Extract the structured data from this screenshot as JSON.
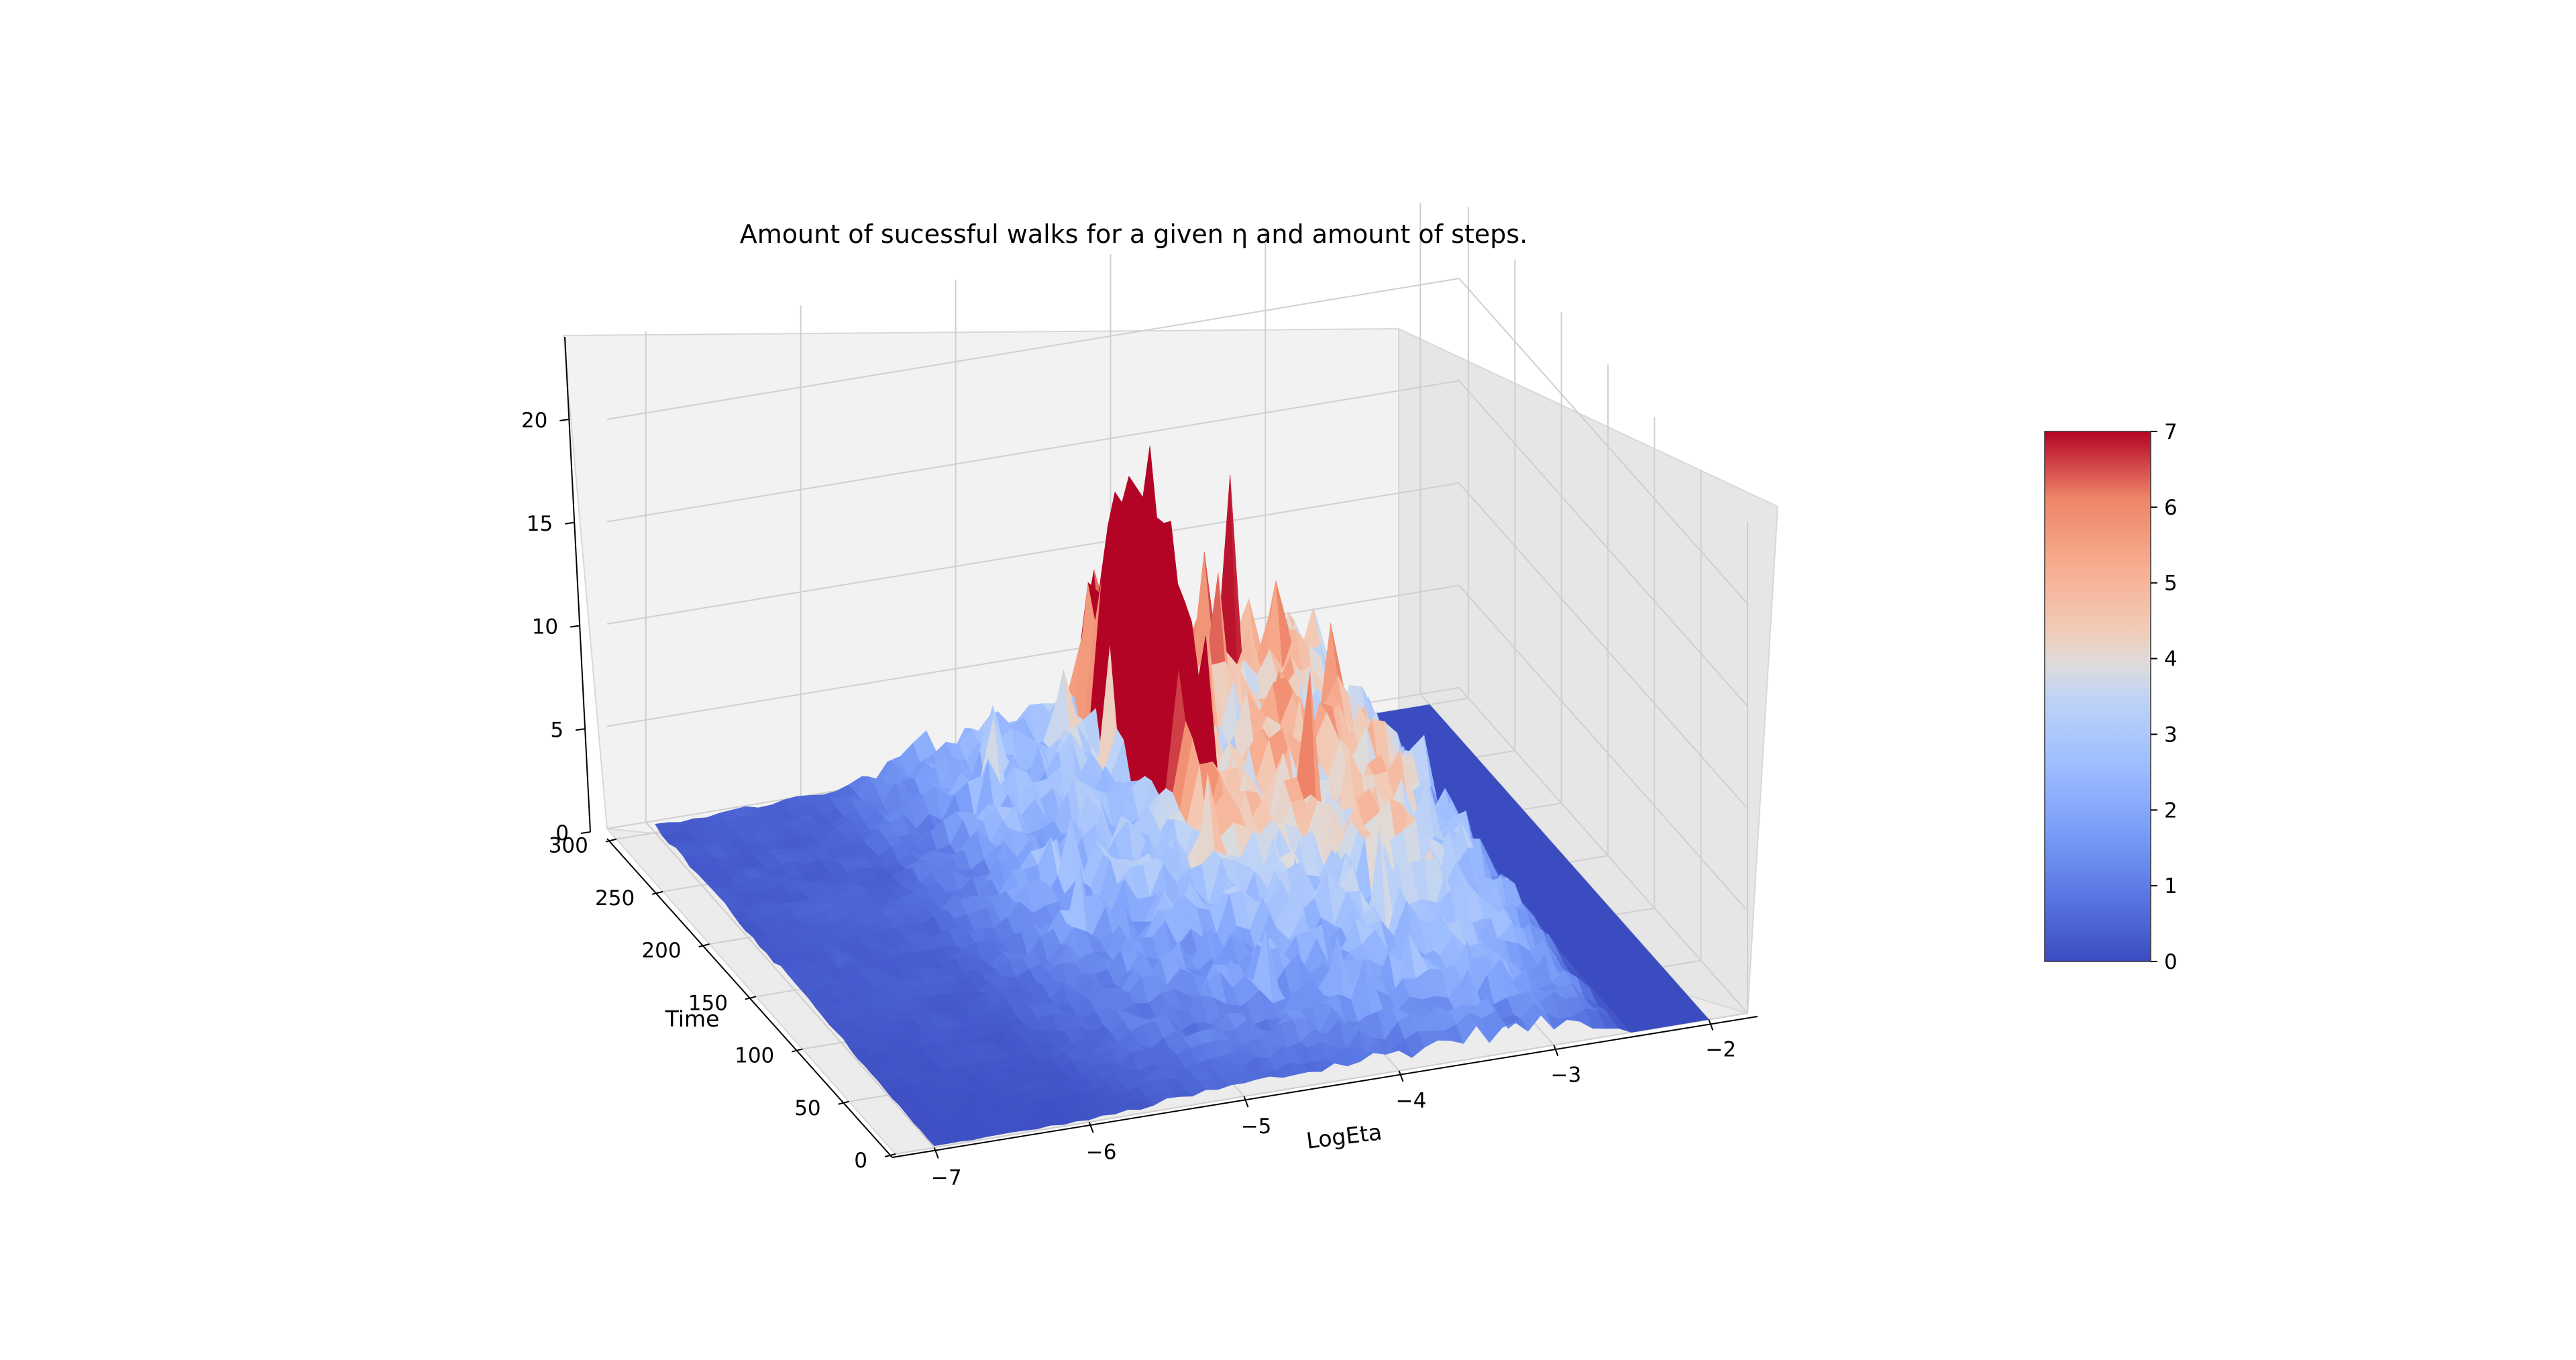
{
  "chart_data": {
    "type": "surface3d",
    "title": "Amount of sucessful walks for a given η and amount of steps.",
    "xlabel": "LogEta",
    "ylabel": "Time",
    "zlabel": "",
    "x_ticks": [
      "−7",
      "−6",
      "−5",
      "−4",
      "−3",
      "−2"
    ],
    "y_ticks": [
      "0",
      "50",
      "100",
      "150",
      "200",
      "250",
      "300"
    ],
    "z_ticks": [
      "0",
      "5",
      "10",
      "15",
      "20"
    ],
    "colorbar_ticks": [
      "0",
      "1",
      "2",
      "3",
      "4",
      "5",
      "6",
      "7"
    ],
    "xlim": [
      -7.25,
      -1.75
    ],
    "ylim": [
      0,
      310
    ],
    "zlim": [
      0,
      24
    ],
    "color_range": [
      0,
      7
    ],
    "colormap": "coolwarm",
    "grid": true,
    "surface_profile": {
      "description_of_mean_height_vs_logeta": "near zero for LogEta below about -5.8, rising to about 3 around -4.5 and up to about 5 near -3.5, then dropping to zero beyond about -2.5",
      "logeta": [
        -7.0,
        -6.5,
        -6.0,
        -5.8,
        -5.5,
        -5.0,
        -4.5,
        -4.0,
        -3.5,
        -3.0,
        -2.7,
        -2.5,
        -2.0
      ],
      "mean_value": [
        0.3,
        0.4,
        0.5,
        0.8,
        1.5,
        2.4,
        3.0,
        3.6,
        4.6,
        4.3,
        3.0,
        0.0,
        0.0
      ],
      "peak_value": 22,
      "peak_logeta": -4.2,
      "peak_time": 240
    }
  }
}
